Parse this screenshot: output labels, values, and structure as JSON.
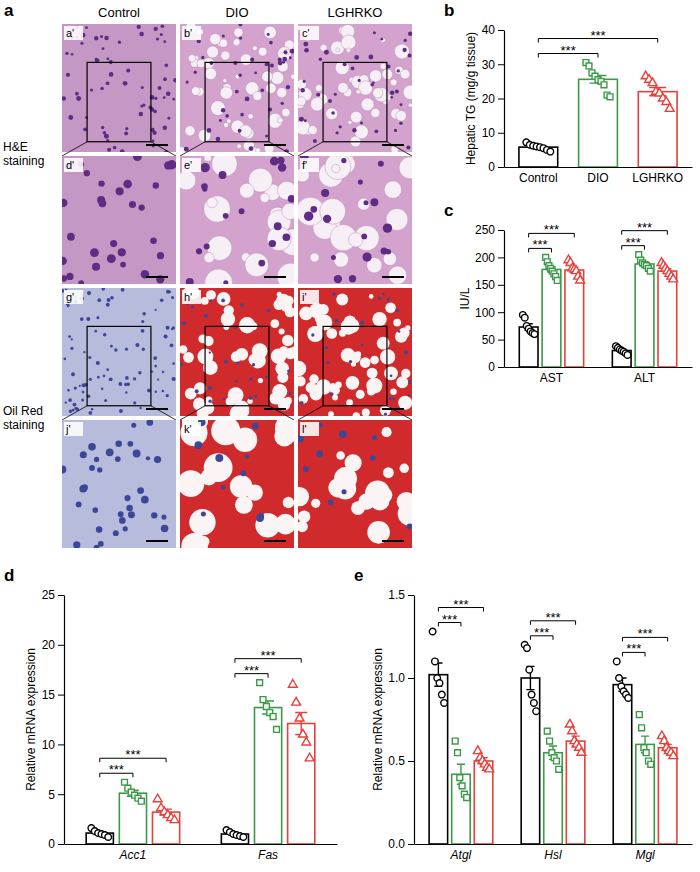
{
  "image_panel": {
    "panel_label": "a",
    "columns": [
      "Control",
      "DIO",
      "LGHRKO"
    ],
    "rows": [
      {
        "label": "H&E staining",
        "tiles": [
          "a'",
          "b'",
          "c'",
          "d'",
          "e'",
          "f'"
        ]
      },
      {
        "label": "Oil Red staining",
        "tiles": [
          "g'",
          "h'",
          "i'",
          "j'",
          "k'",
          "l'"
        ]
      }
    ]
  },
  "chart_data": [
    {
      "panel_label": "b",
      "type": "bar",
      "y_label": "Hepatic TG (mg/g tissue)",
      "categories": [
        "Control",
        "DIO",
        "LGHRKO"
      ],
      "values": [
        5.8,
        25.6,
        22.0
      ],
      "errors": [
        0.3,
        1.1,
        1.2
      ],
      "points": [
        [
          7.2,
          6.5,
          6.2,
          6.0,
          5.8,
          5.5,
          5.0,
          4.5
        ],
        [
          30.5,
          29.5,
          27.5,
          26.5,
          25.5,
          25.0,
          24.0,
          21.0,
          20.5
        ],
        [
          26.5,
          25.5,
          24.5,
          22.0,
          21.5,
          20.0,
          19.0,
          17.0
        ]
      ],
      "colors": [
        "#000000",
        "#3a9a48",
        "#e6403a"
      ],
      "markers": [
        "circle",
        "square",
        "triangle"
      ],
      "ylim": [
        0,
        40
      ],
      "yticks": [
        0,
        10,
        20,
        30,
        40
      ],
      "comparisons": [
        {
          "pair": [
            0,
            1
          ],
          "label": "***"
        },
        {
          "pair": [
            0,
            2
          ],
          "label": "***"
        }
      ]
    },
    {
      "panel_label": "c",
      "type": "bar",
      "y_label": "IU/L",
      "categories": [
        "AST",
        "ALT"
      ],
      "series": [
        {
          "color": "#000000",
          "marker": "circle",
          "values": [
            73,
            30
          ],
          "errors": [
            6,
            2
          ],
          "points": [
            [
              95,
              90,
              75,
              70,
              65,
              62,
              60
            ],
            [
              38,
              35,
              32,
              30,
              28,
              25,
              22
            ]
          ]
        },
        {
          "color": "#3a9a48",
          "marker": "square",
          "values": [
            178,
            188
          ],
          "errors": [
            5,
            4
          ],
          "points": [
            [
              200,
              192,
              185,
              180,
              175,
              170,
              165,
              158
            ],
            [
              205,
              195,
              190,
              187,
              185,
              180,
              175
            ]
          ]
        },
        {
          "color": "#e6403a",
          "marker": "triangle",
          "values": [
            177,
            175
          ],
          "errors": [
            5,
            4
          ],
          "points": [
            [
              195,
              190,
              180,
              178,
              175,
              165,
              158
            ],
            [
              190,
              185,
              180,
              175,
              170,
              165,
              160
            ]
          ]
        }
      ],
      "ylim": [
        0,
        250
      ],
      "yticks": [
        0,
        50,
        100,
        150,
        200,
        250
      ],
      "comparisons": [
        {
          "category": 0,
          "pair": [
            0,
            1
          ],
          "label": "***"
        },
        {
          "category": 0,
          "pair": [
            0,
            2
          ],
          "label": "***"
        },
        {
          "category": 1,
          "pair": [
            0,
            1
          ],
          "label": "***"
        },
        {
          "category": 1,
          "pair": [
            0,
            2
          ],
          "label": "***"
        }
      ]
    },
    {
      "panel_label": "d",
      "type": "bar",
      "y_label": "Relative mRNA expression",
      "categories": [
        "Acc1",
        "Fas"
      ],
      "series": [
        {
          "color": "#000000",
          "marker": "circle",
          "values": [
            1.1,
            1.0
          ],
          "errors": [
            0.14,
            0.11
          ],
          "points": [
            [
              1.6,
              1.3,
              1.1,
              1.0,
              0.9,
              0.7
            ],
            [
              1.4,
              1.2,
              1.0,
              0.9,
              0.8,
              0.7
            ]
          ]
        },
        {
          "color": "#3a9a48",
          "marker": "square",
          "values": [
            5.1,
            13.7
          ],
          "errors": [
            0.3,
            0.65
          ],
          "points": [
            [
              6.2,
              5.6,
              5.2,
              4.9,
              4.6,
              4.3
            ],
            [
              16.2,
              14.5,
              13.8,
              13.2,
              12.8,
              11.5
            ]
          ]
        },
        {
          "color": "#e6403a",
          "marker": "triangle",
          "values": [
            3.2,
            12.1
          ],
          "errors": [
            0.3,
            1.1
          ],
          "points": [
            [
              4.5,
              3.6,
              3.2,
              2.9,
              2.6,
              2.4
            ],
            [
              16.0,
              14.2,
              12.6,
              11.0,
              10.2,
              8.6
            ]
          ]
        }
      ],
      "ylim": [
        0,
        25
      ],
      "yticks": [
        0,
        5,
        10,
        15,
        20,
        25
      ],
      "comparisons": [
        {
          "category": 0,
          "pair": [
            0,
            1
          ],
          "label": "***"
        },
        {
          "category": 0,
          "pair": [
            0,
            2
          ],
          "label": "***"
        },
        {
          "category": 1,
          "pair": [
            0,
            1
          ],
          "label": "***"
        },
        {
          "category": 1,
          "pair": [
            0,
            2
          ],
          "label": "***"
        }
      ]
    },
    {
      "panel_label": "e",
      "type": "bar",
      "y_label": "Relative mRNA expression",
      "categories": [
        "Atgl",
        "Hsl",
        "Mgl"
      ],
      "series": [
        {
          "color": "#000000",
          "marker": "circle",
          "values": [
            1.02,
            1.0,
            0.96
          ],
          "errors": [
            0.07,
            0.07,
            0.04
          ],
          "points": [
            [
              1.28,
              1.1,
              1.0,
              0.97,
              0.9,
              0.85
            ],
            [
              1.2,
              1.18,
              1.05,
              0.9,
              0.85,
              0.8
            ],
            [
              1.1,
              1.0,
              0.95,
              0.92,
              0.9,
              0.88
            ]
          ]
        },
        {
          "color": "#3a9a48",
          "marker": "square",
          "values": [
            0.42,
            0.55,
            0.6
          ],
          "errors": [
            0.06,
            0.04,
            0.05
          ],
          "points": [
            [
              0.62,
              0.55,
              0.4,
              0.35,
              0.3,
              0.28
            ],
            [
              0.68,
              0.62,
              0.55,
              0.52,
              0.5,
              0.45
            ],
            [
              0.78,
              0.7,
              0.58,
              0.55,
              0.5,
              0.48
            ]
          ]
        },
        {
          "color": "#e6403a",
          "marker": "triangle",
          "values": [
            0.5,
            0.62,
            0.58
          ],
          "errors": [
            0.02,
            0.03,
            0.02
          ],
          "points": [
            [
              0.56,
              0.52,
              0.5,
              0.48,
              0.46,
              0.45
            ],
            [
              0.72,
              0.68,
              0.62,
              0.6,
              0.58,
              0.55
            ],
            [
              0.65,
              0.62,
              0.58,
              0.56,
              0.55,
              0.53
            ]
          ]
        }
      ],
      "ylim": [
        0,
        1.5
      ],
      "yticks": [
        {
          "value": 0,
          "label": "0.0"
        },
        0.5,
        {
          "value": 1,
          "label": "1.0"
        },
        1.5
      ],
      "comparisons": [
        {
          "category": 0,
          "pair": [
            0,
            1
          ],
          "label": "***"
        },
        {
          "category": 0,
          "pair": [
            0,
            2
          ],
          "label": "***"
        },
        {
          "category": 1,
          "pair": [
            0,
            1
          ],
          "label": "***"
        },
        {
          "category": 1,
          "pair": [
            0,
            2
          ],
          "label": "***"
        },
        {
          "category": 2,
          "pair": [
            0,
            1
          ],
          "label": "***"
        },
        {
          "category": 2,
          "pair": [
            0,
            2
          ],
          "label": "***"
        }
      ]
    }
  ]
}
